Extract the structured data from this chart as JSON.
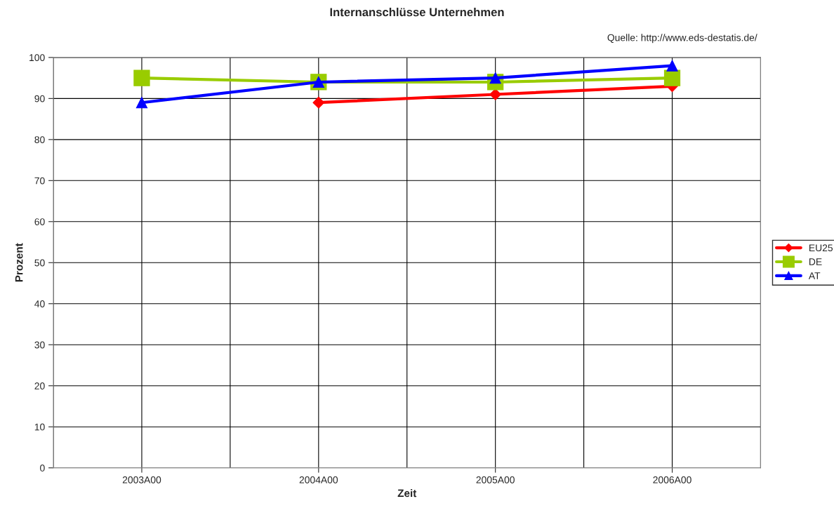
{
  "chart_data": {
    "type": "line",
    "title": "Internanschlüsse Unternehmen",
    "xlabel": "Zeit",
    "ylabel": "Prozent",
    "annotations": [
      "Quelle: http://www.eds-destatis.de/"
    ],
    "categories": [
      "2003A00",
      "2004A00",
      "2005A00",
      "2006A00"
    ],
    "series": [
      {
        "name": "EU25",
        "color": "#ff0000",
        "marker": "diamond",
        "values": [
          null,
          89,
          91,
          93
        ]
      },
      {
        "name": "DE",
        "color": "#99cc00",
        "marker": "square",
        "values": [
          95,
          94,
          94,
          95
        ]
      },
      {
        "name": "AT",
        "color": "#0000ff",
        "marker": "triangle",
        "values": [
          89,
          94,
          95,
          98
        ]
      }
    ],
    "ylim": [
      0,
      100
    ],
    "yticks": [
      0,
      10,
      20,
      30,
      40,
      50,
      60,
      70,
      80,
      90,
      100
    ],
    "grid": true,
    "legend": "right"
  }
}
